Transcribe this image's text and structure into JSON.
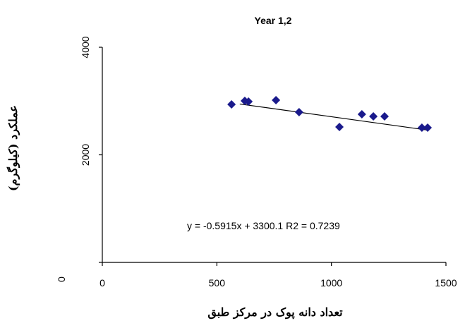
{
  "chart_data": {
    "type": "scatter",
    "title": "Year 1,2",
    "x_label": "تعداد دانه پوک در مرکز طبق",
    "y_label": "عملکرد (کیلوگرم)",
    "series": [
      {
        "name": "Year 1,2",
        "color": "#1a1a8c",
        "x": [
          564,
          622,
          638,
          758,
          859,
          1035,
          1133,
          1183,
          1232,
          1395,
          1420
        ],
        "values": [
          2938,
          3003,
          2990,
          3016,
          2793,
          2518,
          2754,
          2715,
          2715,
          2505,
          2505
        ]
      }
    ],
    "trendline": {
      "label": "y = -0.5915x + 3300.1 R2 = 0.7239",
      "slope": -0.5915,
      "intercept": 3300.1,
      "x": [
        600,
        1420
      ]
    },
    "xlim": [
      0,
      1500
    ],
    "xticks": [
      0,
      500,
      1000,
      1500
    ],
    "ylim": [
      0,
      4000
    ],
    "yticks": [
      0,
      2000,
      4000
    ]
  }
}
